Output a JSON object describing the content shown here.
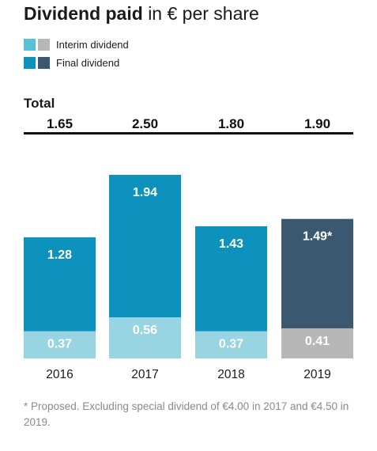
{
  "title": {
    "bold": "Dividend paid",
    "light": "in € per share"
  },
  "legend": {
    "interim": {
      "label": "Interim dividend",
      "colors": [
        "#58c1d6",
        "#b7b7b7"
      ]
    },
    "final": {
      "label": "Final dividend",
      "colors": [
        "#0d91bd",
        "#3a5870"
      ]
    }
  },
  "total_label": "Total",
  "footnote": "* Proposed. Excluding special dividend of €4.00 in 2017 and €4.50 in 2019.",
  "chart_data": {
    "type": "bar",
    "stacked": true,
    "categories": [
      "2016",
      "2017",
      "2018",
      "2019"
    ],
    "series": [
      {
        "name": "Interim dividend",
        "values": [
          0.37,
          0.56,
          0.37,
          0.41
        ],
        "labels": [
          "0.37",
          "0.56",
          "0.37",
          "0.41"
        ],
        "colors": [
          "#98d4e2",
          "#98d4e2",
          "#98d4e2",
          "#b7b7b7"
        ]
      },
      {
        "name": "Final dividend",
        "values": [
          1.28,
          1.94,
          1.43,
          1.49
        ],
        "labels": [
          "1.28",
          "1.94",
          "1.43",
          "1.49*"
        ],
        "colors": [
          "#0d91bd",
          "#0d91bd",
          "#0d91bd",
          "#3a5870"
        ]
      }
    ],
    "totals": [
      "1.65",
      "2.50",
      "1.80",
      "1.90"
    ],
    "ylim": [
      0,
      2.5
    ],
    "grid": false,
    "legend_position": "top-left"
  }
}
